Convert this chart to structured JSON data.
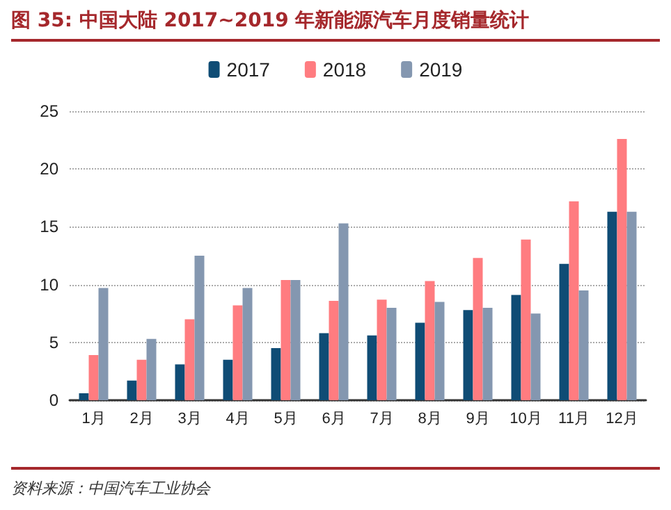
{
  "chart_data": {
    "type": "bar",
    "title": "图 35: 中国大陆 2017~2019 年新能源汽车月度销量统计",
    "categories": [
      "1月",
      "2月",
      "3月",
      "4月",
      "5月",
      "6月",
      "7月",
      "8月",
      "9月",
      "10月",
      "11月",
      "12月"
    ],
    "series": [
      {
        "name": "2017",
        "color": "#0f4c75",
        "values": [
          0.6,
          1.7,
          3.1,
          3.5,
          4.5,
          5.8,
          5.6,
          6.7,
          7.8,
          9.1,
          11.8,
          16.3
        ]
      },
      {
        "name": "2018",
        "color": "#ff7c80",
        "values": [
          3.9,
          3.5,
          7.0,
          8.2,
          10.4,
          8.6,
          8.7,
          10.3,
          12.3,
          13.9,
          17.2,
          22.6
        ]
      },
      {
        "name": "2019",
        "color": "#8497b0",
        "values": [
          9.7,
          5.3,
          12.5,
          9.7,
          10.4,
          15.3,
          8.0,
          8.5,
          8.0,
          7.5,
          9.5,
          16.3
        ]
      }
    ],
    "ylim": [
      0,
      25
    ],
    "yticks": [
      0,
      5,
      10,
      15,
      20,
      25
    ],
    "grid": "y",
    "legend": "top",
    "annotations": [
      "资料来源：中国汽车工业协会"
    ]
  }
}
